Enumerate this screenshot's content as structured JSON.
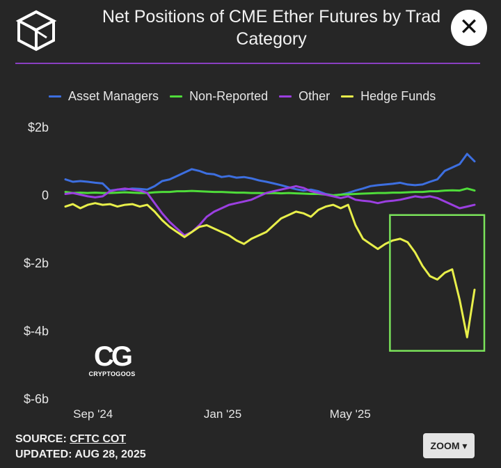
{
  "header": {
    "title_line1": "Net Positions of CME Ether Futures by Trad",
    "title_line2": "Category",
    "close_label": "✕"
  },
  "footer": {
    "source_label": "SOURCE:",
    "source_link": "CFTC COT",
    "updated_label": "UPDATED:",
    "updated_value": "AUG 28, 2025",
    "zoom_label": "ZOOM ▾"
  },
  "watermark": {
    "mark": "CG",
    "text": "CRYPTOGOOS"
  },
  "colors": {
    "background": "#262626",
    "accent_rule": "#8a3fc2",
    "asset_managers": "#3d6fe0",
    "non_reported": "#4fdc3a",
    "other": "#9b3fe0",
    "hedge_funds": "#e8ef4a",
    "highlight_box": "#7be35a"
  },
  "chart_data": {
    "type": "line",
    "title": "Net Positions of CME Ether Futures by Trader Category",
    "y_unit": "USD billions",
    "ylim": [
      -6,
      2.2
    ],
    "y_ticks": [
      2,
      0,
      -2,
      -4,
      -6
    ],
    "y_tick_labels": [
      "$2b",
      "0",
      "$-2b",
      "$-4b",
      "$-6b"
    ],
    "x_range": [
      "2024-08-06",
      "2025-08-26"
    ],
    "x_ticks": [
      "2024-09-01",
      "2025-01-01",
      "2025-05-01"
    ],
    "x_tick_labels": [
      "Sep '24",
      "Jan '25",
      "May '25"
    ],
    "grid": false,
    "legend_position": "top",
    "x": [
      "2024-08-06",
      "2024-08-13",
      "2024-08-20",
      "2024-08-27",
      "2024-09-03",
      "2024-09-10",
      "2024-09-17",
      "2024-09-24",
      "2024-10-01",
      "2024-10-08",
      "2024-10-15",
      "2024-10-22",
      "2024-10-29",
      "2024-11-05",
      "2024-11-12",
      "2024-11-19",
      "2024-11-26",
      "2024-12-03",
      "2024-12-10",
      "2024-12-17",
      "2024-12-24",
      "2024-12-31",
      "2025-01-07",
      "2025-01-14",
      "2025-01-21",
      "2025-01-28",
      "2025-02-04",
      "2025-02-11",
      "2025-02-18",
      "2025-02-25",
      "2025-03-04",
      "2025-03-11",
      "2025-03-18",
      "2025-03-25",
      "2025-04-01",
      "2025-04-08",
      "2025-04-15",
      "2025-04-22",
      "2025-04-29",
      "2025-05-06",
      "2025-05-13",
      "2025-05-20",
      "2025-05-27",
      "2025-06-03",
      "2025-06-10",
      "2025-06-17",
      "2025-06-24",
      "2025-07-01",
      "2025-07-08",
      "2025-07-15",
      "2025-07-22",
      "2025-07-29",
      "2025-08-05",
      "2025-08-12",
      "2025-08-19",
      "2025-08-26"
    ],
    "series": [
      {
        "name": "Asset Managers",
        "values": [
          0.45,
          0.38,
          0.4,
          0.38,
          0.35,
          0.33,
          0.12,
          0.15,
          0.15,
          0.18,
          0.17,
          0.15,
          0.25,
          0.4,
          0.45,
          0.55,
          0.65,
          0.75,
          0.7,
          0.62,
          0.6,
          0.52,
          0.55,
          0.5,
          0.52,
          0.48,
          0.42,
          0.38,
          0.33,
          0.28,
          0.22,
          0.16,
          0.12,
          0.15,
          0.1,
          0.02,
          -0.02,
          0.0,
          0.05,
          0.12,
          0.18,
          0.25,
          0.28,
          0.3,
          0.32,
          0.35,
          0.3,
          0.28,
          0.3,
          0.38,
          0.45,
          0.7,
          0.8,
          0.9,
          1.2,
          0.98
        ]
      },
      {
        "name": "Non-Reported",
        "values": [
          0.08,
          0.05,
          0.06,
          0.05,
          0.06,
          0.05,
          0.05,
          0.06,
          0.07,
          0.06,
          0.05,
          0.05,
          0.07,
          0.08,
          0.08,
          0.1,
          0.1,
          0.11,
          0.1,
          0.09,
          0.08,
          0.08,
          0.07,
          0.06,
          0.06,
          0.05,
          0.05,
          0.04,
          0.05,
          0.04,
          0.05,
          0.04,
          0.03,
          0.02,
          0.02,
          0.0,
          -0.02,
          0.0,
          0.01,
          0.02,
          0.03,
          0.04,
          0.05,
          0.05,
          0.06,
          0.06,
          0.07,
          0.08,
          0.08,
          0.1,
          0.1,
          0.12,
          0.13,
          0.12,
          0.18,
          0.12
        ]
      },
      {
        "name": "Other",
        "values": [
          0.02,
          0.05,
          0.0,
          -0.05,
          -0.08,
          -0.05,
          0.1,
          0.15,
          0.18,
          0.15,
          0.12,
          0.05,
          -0.25,
          -0.55,
          -0.8,
          -1.0,
          -1.2,
          -1.1,
          -0.9,
          -0.65,
          -0.5,
          -0.4,
          -0.3,
          -0.25,
          -0.2,
          -0.15,
          -0.05,
          0.05,
          0.1,
          0.15,
          0.2,
          0.25,
          0.2,
          0.1,
          0.05,
          0.0,
          -0.05,
          -0.1,
          -0.05,
          -0.15,
          -0.18,
          -0.2,
          -0.25,
          -0.2,
          -0.18,
          -0.15,
          -0.1,
          -0.05,
          -0.08,
          -0.05,
          -0.1,
          -0.2,
          -0.3,
          -0.4,
          -0.35,
          -0.3
        ]
      },
      {
        "name": "Hedge Funds",
        "values": [
          -0.35,
          -0.28,
          -0.4,
          -0.3,
          -0.25,
          -0.3,
          -0.28,
          -0.35,
          -0.3,
          -0.28,
          -0.35,
          -0.3,
          -0.5,
          -0.75,
          -0.95,
          -1.1,
          -1.25,
          -1.1,
          -0.95,
          -0.9,
          -1.0,
          -1.1,
          -1.2,
          -1.35,
          -1.45,
          -1.3,
          -1.2,
          -1.1,
          -0.9,
          -0.7,
          -0.6,
          -0.5,
          -0.55,
          -0.65,
          -0.45,
          -0.35,
          -0.3,
          -0.4,
          -0.3,
          -0.9,
          -1.3,
          -1.45,
          -1.6,
          -1.45,
          -1.35,
          -1.3,
          -1.4,
          -1.7,
          -2.1,
          -2.4,
          -2.5,
          -2.3,
          -2.2,
          -3.1,
          -4.2,
          -2.8
        ]
      }
    ],
    "highlight": {
      "x_start": "2025-06-10",
      "x_end": "2025-08-26",
      "y_top": -0.6,
      "y_bottom": -4.6
    }
  }
}
